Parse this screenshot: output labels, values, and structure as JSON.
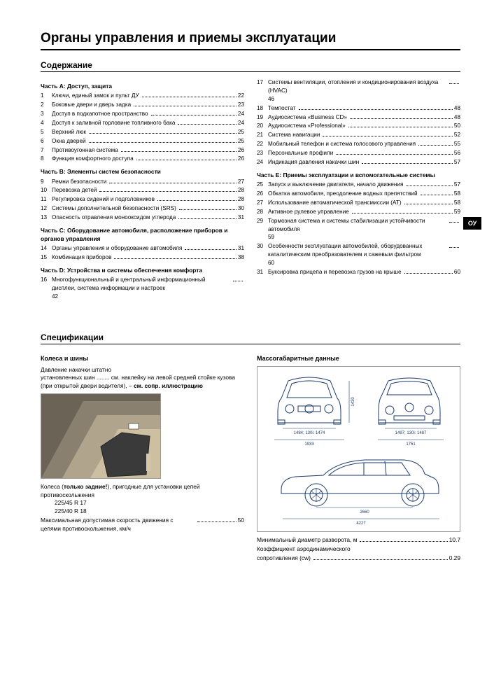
{
  "title": "Органы управления и приемы эксплуатации",
  "toc_heading": "Содержание",
  "side_tab": "ОУ",
  "parts_left": [
    {
      "head": "Часть A: Доступ, защита",
      "rows": [
        {
          "n": "1",
          "label": "Ключи, единый замок и пульт ДУ",
          "p": "22"
        },
        {
          "n": "2",
          "label": "Боковые двери и дверь задка",
          "p": "23"
        },
        {
          "n": "3",
          "label": "Доступ в подкапотное пространство",
          "p": "24"
        },
        {
          "n": "4",
          "label": "Доступ к заливной горловине топливного бака",
          "p": "24"
        },
        {
          "n": "5",
          "label": "Верхний люк",
          "p": "25"
        },
        {
          "n": "6",
          "label": "Окна дверей",
          "p": "25"
        },
        {
          "n": "7",
          "label": "Противоугонная система",
          "p": "26"
        },
        {
          "n": "8",
          "label": "Функция комфортного доступа",
          "p": "26"
        }
      ]
    },
    {
      "head": "Часть B: Элементы систем безопасности",
      "rows": [
        {
          "n": "9",
          "label": "Ремни безопасности",
          "p": "27"
        },
        {
          "n": "10",
          "label": "Перевозка детей",
          "p": "28"
        },
        {
          "n": "11",
          "label": "Регулировка сидений и подголовников",
          "p": "28"
        },
        {
          "n": "12",
          "label": "Системы дополнительной безопасности (SRS)",
          "p": "30"
        },
        {
          "n": "13",
          "label": "Опасность отравления монооксидом углерода",
          "p": "31"
        }
      ]
    },
    {
      "head": "Часть C: Оборудование автомобиля, расположение приборов и органов управления",
      "rows": [
        {
          "n": "14",
          "label": "Органы управления и оборудование автомобиля",
          "p": "31"
        },
        {
          "n": "15",
          "label": "Комбинация приборов",
          "p": "38"
        }
      ]
    },
    {
      "head": "Часть D: Устройства и системы обеспечения комфорта",
      "rows": [
        {
          "n": "16",
          "label": "Многофункциональный и центральный информационный дисплеи, система информации и настроек",
          "p": "42"
        }
      ]
    }
  ],
  "parts_right": [
    {
      "head": "",
      "rows": [
        {
          "n": "17",
          "label": "Системы вентиляции, отопления и кондиционирования воздуха (HVAC)",
          "p": "46"
        },
        {
          "n": "18",
          "label": "Темпостат",
          "p": "48"
        },
        {
          "n": "19",
          "label": "Аудиосистема «Business CD»",
          "p": "48"
        },
        {
          "n": "20",
          "label": "Аудиосистема «Professional»",
          "p": "50"
        },
        {
          "n": "21",
          "label": "Система навигации",
          "p": "52"
        },
        {
          "n": "22",
          "label": "Мобильный телефон и система голосового управления",
          "p": "55"
        },
        {
          "n": "23",
          "label": "Персональные профили",
          "p": "56"
        },
        {
          "n": "24",
          "label": "Индикация давления накачки шин",
          "p": "57"
        }
      ]
    },
    {
      "head": "Часть E: Приемы эксплуатации и вспомогательные системы",
      "rows": [
        {
          "n": "25",
          "label": "Запуск и выключение двигателя, начало движения",
          "p": "57"
        },
        {
          "n": "26",
          "label": "Обкатка автомобиля, преодоление водных препятствий",
          "p": "58"
        },
        {
          "n": "27",
          "label": "Использование автоматической трансмиссии (AT)",
          "p": "58"
        },
        {
          "n": "28",
          "label": "Активное рулевое управление",
          "p": "59"
        },
        {
          "n": "29",
          "label": "Тормозная система и системы стабилизации устойчивости автомобиля",
          "p": "59"
        },
        {
          "n": "30",
          "label": "Особенности эксплуатации автомобилей, оборудованных каталитическим преобразователем и сажевым фильтром",
          "p": "60"
        },
        {
          "n": "31",
          "label": "Буксировка прицепа и перевозка грузов на крыше",
          "p": "60"
        }
      ]
    }
  ],
  "spec_heading": "Спецификации",
  "wheels_head": "Колеса и шины",
  "wheels_p1_a": "Давление накачки штатно",
  "wheels_p1_b": "установленных шин",
  "wheels_p1_c": "см. наклейку на левой средней стойке кузова (при открытой двери водителя), – ",
  "wheels_p1_bold": "см. сопр. иллюстрацию",
  "wheels_p2_a": "Колеса (",
  "wheels_p2_bold": "только задние!",
  "wheels_p2_b": "), пригодные для установки цепей противоскольжения",
  "tire_sizes": [
    "225/45 R 17",
    "225/40 R 18"
  ],
  "wheels_p3": "Максимальная допустимая скорость движения с цепями противоскольжения, км/ч",
  "wheels_p3_val": "50",
  "dims_head": "Массогабаритные данные",
  "dims": {
    "height": "1430",
    "front_track": "1484; 130i: 1474",
    "front_width": "1933",
    "rear_track": "1497; 130i: 1487",
    "rear_width": "1751",
    "wheelbase": "2660",
    "length": "4227"
  },
  "dims_line1": "Минимальный диаметр разворота, м",
  "dims_line1_val": "10.7",
  "dims_line2a": "Коэффициент аэродинамического",
  "dims_line2b": "сопротивления (cw)",
  "dims_line2_val": "0.29"
}
